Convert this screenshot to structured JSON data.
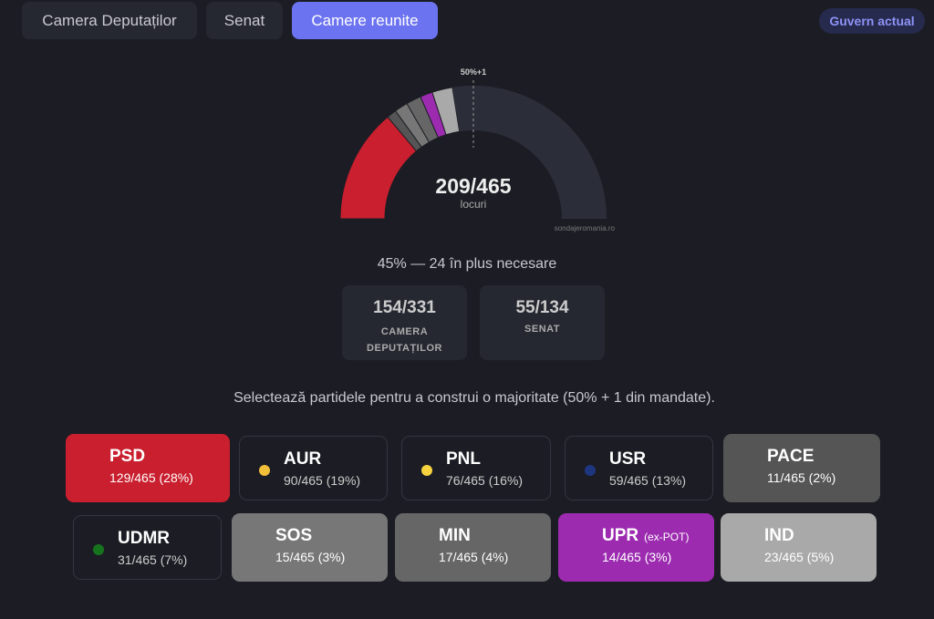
{
  "tabs": [
    "Camera Deputaților",
    "Senat",
    "Camere reunite"
  ],
  "active_tab": 2,
  "badge": "Guvern actual",
  "gauge": {
    "majority_label": "50%+1",
    "value_label": "209/465",
    "unit": "locuri",
    "watermark": "sondajeromania.ro",
    "total": 465,
    "remaining_color": "#2b2e39"
  },
  "summary": "45% — 24 în plus necesare",
  "chambers": [
    {
      "value": "154/331",
      "label": "CAMERA DEPUTAȚILOR"
    },
    {
      "value": "55/134",
      "label": "SENAT"
    }
  ],
  "instruction": "Selectează partidele pentru a construi o majoritate (50% + 1 din mandate).",
  "parties": [
    {
      "name": "PSD",
      "seats": 129,
      "label": "129/465 (28%)",
      "color": "#c91f2e",
      "selected": true
    },
    {
      "name": "AUR",
      "seats": 90,
      "label": "90/465 (19%)",
      "color": "#f2bf3a",
      "selected": false
    },
    {
      "name": "PNL",
      "seats": 76,
      "label": "76/465 (16%)",
      "color": "#f5d23e",
      "selected": false
    },
    {
      "name": "USR",
      "seats": 59,
      "label": "59/465 (13%)",
      "color": "#1e3580",
      "selected": false
    },
    {
      "name": "PACE",
      "seats": 11,
      "label": "11/465 (2%)",
      "color": "#555555",
      "selected": true
    },
    {
      "name": "UDMR",
      "seats": 31,
      "label": "31/465 (7%)",
      "color": "#16741f",
      "selected": false
    },
    {
      "name": "SOS",
      "seats": 15,
      "label": "15/465 (3%)",
      "color": "#777777",
      "selected": true
    },
    {
      "name": "MIN",
      "seats": 17,
      "label": "17/465 (4%)",
      "color": "#666666",
      "selected": true
    },
    {
      "name": "UPR",
      "note": "(ex-POT)",
      "seats": 14,
      "label": "14/465 (3%)",
      "color": "#9c2bb0",
      "selected": true
    },
    {
      "name": "IND",
      "seats": 23,
      "label": "23/465 (5%)",
      "color": "#a9a9a9",
      "selected": true
    }
  ]
}
